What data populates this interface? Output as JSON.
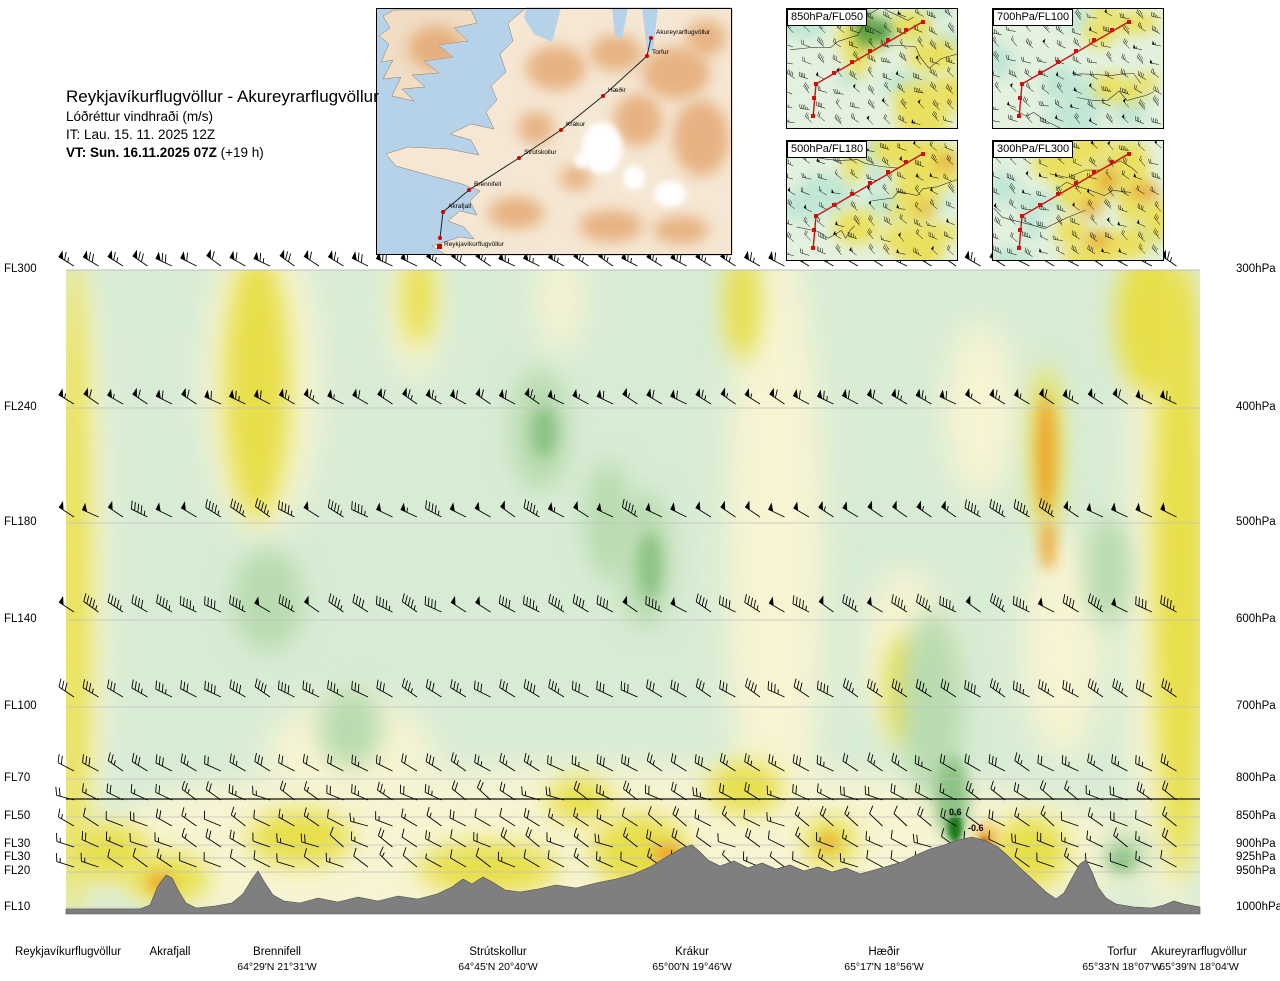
{
  "header": {
    "title": "Reykjavíkurflugvöllur - Akureyrarflugvöllur",
    "subtitle": "Lóðréttur vindhraði (m/s)",
    "init_time": "IT: Lau. 15. 11. 2025 12Z",
    "valid_time": "VT: Sun. 16.11.2025 07Z",
    "valid_offset": "(+19 h)"
  },
  "route_map": {
    "waypoints": [
      "Reykjavíkurflugvöllur",
      "Akrafjall",
      "Brennifell",
      "Strútskollur",
      "Krákur",
      "Hæðir",
      "Torfur",
      "Akureyrarflugvöllur"
    ]
  },
  "mini_panels": [
    {
      "label": "850hPa/FL050"
    },
    {
      "label": "700hPa/FL100"
    },
    {
      "label": "500hPa/FL180"
    },
    {
      "label": "300hPa/FL300"
    }
  ],
  "cross_section": {
    "left_axis": [
      "FL300",
      "FL240",
      "FL180",
      "FL140",
      "FL100",
      "FL70",
      "FL50",
      "FL30",
      "FL30",
      "FL20",
      "FL10"
    ],
    "right_axis": [
      "300hPa",
      "400hPa",
      "500hPa",
      "600hPa",
      "700hPa",
      "800hPa",
      "850hPa",
      "900hPa",
      "925hPa",
      "950hPa",
      "1000hPa"
    ]
  },
  "stations": [
    {
      "name": "Reykjavíkurflugvöllur",
      "coords": ""
    },
    {
      "name": "Akrafjall",
      "coords": ""
    },
    {
      "name": "Brennifell",
      "coords": "64°29'N 21°31'W"
    },
    {
      "name": "Strútskollur",
      "coords": "64°45'N 20°40'W"
    },
    {
      "name": "Krákur",
      "coords": "65°00'N 19°46'W"
    },
    {
      "name": "Hæðir",
      "coords": "65°17'N 18°56'W"
    },
    {
      "name": "Torfur",
      "coords": "65°33'N 18°07'W"
    },
    {
      "name": "Akureyrarflugvöllur",
      "coords": "65°39'N 18°04'W"
    }
  ],
  "chart_data": {
    "type": "heatmap",
    "title": "Lóðréttur vindhraði (m/s)",
    "unit": "m/s",
    "x_stations": [
      "Reykjavíkurflugvöllur",
      "Akrafjall",
      "Brennifell",
      "Strútskollur",
      "Krákur",
      "Hæðir",
      "Torfur",
      "Akureyrarflugvöllur"
    ],
    "y_levels_hpa": [
      300,
      400,
      500,
      600,
      700,
      800,
      850,
      900,
      925,
      950,
      1000
    ],
    "y_levels_fl": [
      "FL300",
      "FL240",
      "FL180",
      "FL140",
      "FL100",
      "FL70",
      "FL50",
      "FL30",
      "FL30",
      "FL20",
      "FL10"
    ],
    "note": "Vertical wind speed cross-section; values estimated from fill colours (yellow/orange = positive, green = negative).",
    "series": [
      {
        "level_hpa": 300,
        "values": [
          0.3,
          -0.1,
          0.4,
          0.1,
          -0.1,
          0.0,
          0.1,
          0.4
        ]
      },
      {
        "level_hpa": 400,
        "values": [
          0.3,
          -0.1,
          0.4,
          0.0,
          -0.1,
          0.1,
          0.3,
          0.4
        ]
      },
      {
        "level_hpa": 500,
        "values": [
          0.2,
          -0.1,
          0.2,
          -0.1,
          -0.2,
          0.0,
          0.2,
          0.3
        ]
      },
      {
        "level_hpa": 600,
        "values": [
          0.2,
          -0.1,
          -0.1,
          -0.1,
          -0.2,
          0.1,
          -0.2,
          0.3
        ]
      },
      {
        "level_hpa": 700,
        "values": [
          0.2,
          0.0,
          -0.1,
          -0.1,
          0.0,
          0.3,
          -0.1,
          0.2
        ]
      },
      {
        "level_hpa": 800,
        "values": [
          0.3,
          0.1,
          0.1,
          0.0,
          0.1,
          -0.2,
          0.1,
          0.2
        ]
      },
      {
        "level_hpa": 850,
        "values": [
          0.2,
          0.3,
          0.1,
          -0.1,
          0.3,
          -0.4,
          0.1,
          -0.2
        ]
      },
      {
        "level_hpa": 900,
        "values": [
          0.2,
          0.5,
          0.1,
          0.1,
          0.6,
          -0.6,
          -0.3,
          0.2
        ]
      },
      {
        "level_hpa": 925,
        "values": [
          0.1,
          0.4,
          0.1,
          0.1,
          0.4,
          0.8,
          -0.3,
          0.1
        ]
      },
      {
        "level_hpa": 950,
        "values": [
          0.1,
          0.2,
          0.0,
          0.1,
          0.2,
          0.3,
          -0.1,
          0.1
        ]
      },
      {
        "level_hpa": 1000,
        "values": [
          0.0,
          0.1,
          0.0,
          0.0,
          0.1,
          0.1,
          0.0,
          0.0
        ]
      }
    ],
    "annotations": [
      {
        "text": "0.6",
        "x": 949,
        "y": 812
      },
      {
        "text": "-0.6",
        "x": 968,
        "y": 828
      }
    ],
    "wind_levels": [
      {
        "level": "300hPa",
        "typical_speed_kt": 65
      },
      {
        "level": "400hPa",
        "typical_speed_kt": 60
      },
      {
        "level": "500hPa",
        "typical_speed_kt": 50
      },
      {
        "level": "600hPa",
        "typical_speed_kt": 45
      },
      {
        "level": "700hPa",
        "typical_speed_kt": 35
      },
      {
        "level": "800hPa",
        "typical_speed_kt": 25
      },
      {
        "level": "850hPa",
        "typical_speed_kt": 20
      },
      {
        "level": "900hPa",
        "typical_speed_kt": 15
      },
      {
        "level": "925hPa",
        "typical_speed_kt": 15
      },
      {
        "level": "950hPa",
        "typical_speed_kt": 10
      }
    ],
    "color_scale": [
      {
        "value": -0.6,
        "color": "#1f7a1f"
      },
      {
        "value": -0.3,
        "color": "#8cc384"
      },
      {
        "value": -0.1,
        "color": "#d8ecd5"
      },
      {
        "value": 0.0,
        "color": "#f7f4d2"
      },
      {
        "value": 0.3,
        "color": "#e7df49"
      },
      {
        "value": 0.6,
        "color": "#eca42e"
      },
      {
        "value": 0.8,
        "color": "#a85c10"
      }
    ],
    "ylabel": "Pressure (hPa) / Flight level",
    "grid": true
  }
}
